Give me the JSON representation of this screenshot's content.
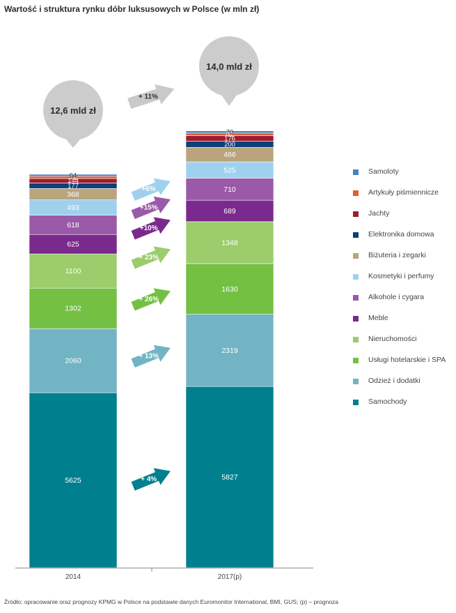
{
  "chart_data": {
    "type": "bar",
    "stacked": true,
    "title": "Wartość i struktura rynku dóbr luksusowych w Polsce (w mln zł)",
    "categories": [
      "2014",
      "2017(p)"
    ],
    "series": [
      {
        "name": "Samochody",
        "color": "#00808f",
        "values": [
          5625,
          5827
        ],
        "growth": "+ 4%",
        "label_color": "#ffffff"
      },
      {
        "name": "Odzież i dodatki",
        "color": "#72b4c4",
        "values": [
          2060,
          2319
        ],
        "growth": "+ 13%",
        "label_color": "#ffffff"
      },
      {
        "name": "Usługi hotelarskie i SPA",
        "color": "#74c043",
        "values": [
          1302,
          1630
        ],
        "growth": "+ 26%",
        "label_color": "#ffffff"
      },
      {
        "name": "Nieruchomości",
        "color": "#9ccc6c",
        "values": [
          1100,
          1348
        ],
        "growth": "+ 23%",
        "label_color": "#ffffff"
      },
      {
        "name": "Meble",
        "color": "#7a2a8c",
        "values": [
          625,
          689
        ],
        "growth": "+10%",
        "label_color": "#ffffff"
      },
      {
        "name": "Alkohole i cygara",
        "color": "#9a5aa8",
        "values": [
          618,
          710
        ],
        "growth": "+15%",
        "label_color": "#ffffff"
      },
      {
        "name": "Kosmetyki i perfumy",
        "color": "#9fd1ee",
        "values": [
          493,
          525
        ],
        "growth": "+6%",
        "label_color": "#ffffff"
      },
      {
        "name": "Biżuteria i zegarki",
        "color": "#b9a47c",
        "values": [
          368,
          466
        ],
        "growth": null,
        "label_color": "#ffffff"
      },
      {
        "name": "Elektronika domowa",
        "color": "#0d3f7a",
        "values": [
          177,
          200
        ],
        "growth": null,
        "label_color": "#ffffff"
      },
      {
        "name": "Jachty",
        "color": "#9e1c2f",
        "values": [
          144,
          176
        ],
        "growth": null,
        "label_color": "#ffffff"
      },
      {
        "name": "Artykuły piśmiennicze",
        "color": "#e35e2b",
        "values": [
          71,
          82
        ],
        "growth": null,
        "label_color": "#ffffff"
      },
      {
        "name": "Samoloty",
        "color": "#4a82c0",
        "values": [
          64,
          70
        ],
        "growth": null,
        "label_color": "#333333"
      }
    ],
    "legend_order": [
      "Samoloty",
      "Artykuły piśmiennicze",
      "Jachty",
      "Elektronika domowa",
      "Biżuteria i zegarki",
      "Kosmetyki i perfumy",
      "Alkohole i cygara",
      "Meble",
      "Nieruchomości",
      "Usługi hotelarskie i SPA",
      "Odzież i dodatki",
      "Samochody"
    ],
    "totals": [
      "12,6 mld zł",
      "14,0 mld zł"
    ],
    "total_growth": "+ 11%",
    "legend_position": "right"
  },
  "source": "Źródło: opracowanie oraz prognozy KPMG w Polsce na podstawie danych Euromonitor International, BMI, GUS; (p) – prognoza"
}
